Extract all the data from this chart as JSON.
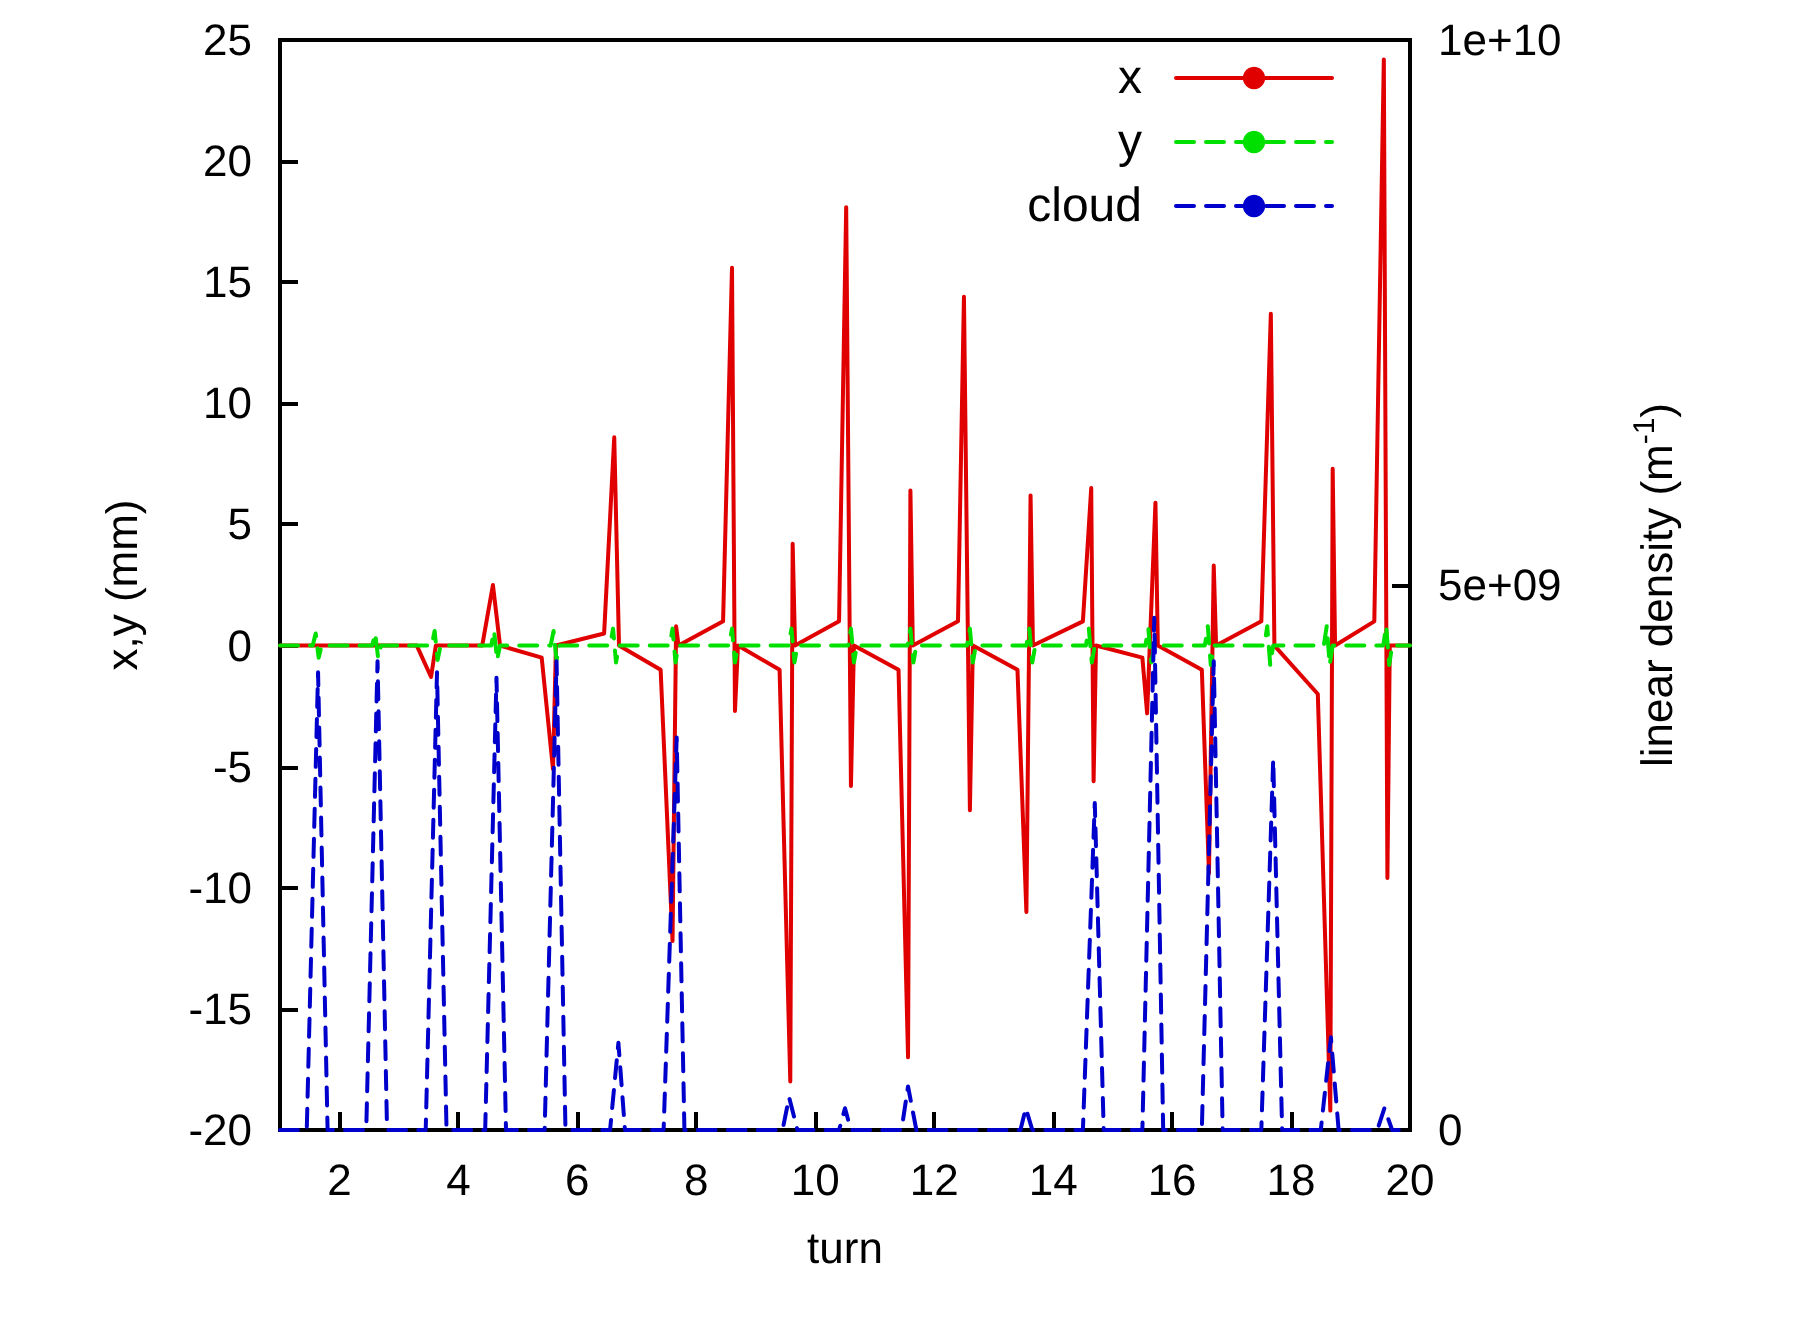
{
  "chart_data": {
    "type": "line",
    "xlabel": "turn",
    "ylabel": "x,y (mm)",
    "y2label": "linear density (m$^{-1}$)",
    "xlim": [
      1,
      20
    ],
    "xticks": [
      2,
      4,
      6,
      8,
      10,
      12,
      14,
      16,
      18,
      20
    ],
    "ylim": [
      -20,
      25
    ],
    "yticks": [
      -20,
      -15,
      -10,
      -5,
      0,
      5,
      10,
      15,
      20,
      25
    ],
    "y2lim": [
      0,
      10000000000
    ],
    "y2ticks": [
      {
        "value": 0,
        "label": "0"
      },
      {
        "value": 5000000000,
        "label": "5e+09"
      },
      {
        "value": 10000000000,
        "label": "1e+10"
      }
    ],
    "grid": false,
    "legend": "top right",
    "marker": "none",
    "series": [
      {
        "name": "x",
        "color": "#e00000",
        "line_style": "solid",
        "x": [
          1,
          3.3,
          3.54,
          3.62,
          4.4,
          4.58,
          4.7,
          5.4,
          5.59,
          5.64,
          6.45,
          6.62,
          6.7,
          7.4,
          7.6,
          7.66,
          7.7,
          8.45,
          8.6,
          8.65,
          8.7,
          9.4,
          9.58,
          9.62,
          9.66,
          10.4,
          10.52,
          10.6,
          10.65,
          11.4,
          11.56,
          11.6,
          11.64,
          12.4,
          12.5,
          12.6,
          12.65,
          13.4,
          13.55,
          13.62,
          13.66,
          14.5,
          14.64,
          14.68,
          14.72,
          15.5,
          15.58,
          15.72,
          15.76,
          16.5,
          16.62,
          16.7,
          16.74,
          17.5,
          17.66,
          17.72,
          18.45,
          18.66,
          18.7,
          18.74,
          19.4,
          19.56,
          19.62,
          19.66,
          20
        ],
        "values": [
          0,
          0,
          -1.3,
          0,
          0,
          2.5,
          0,
          -0.5,
          -5.1,
          0,
          0.5,
          8.6,
          0,
          -1,
          -12.2,
          0.8,
          0,
          1,
          15.6,
          -2.7,
          0,
          -1,
          -18,
          4.2,
          0,
          1,
          18.1,
          -5.8,
          0,
          -1,
          -17,
          6.4,
          0,
          1,
          14.4,
          -6.8,
          0,
          -1,
          -11,
          6.2,
          0,
          1,
          6.5,
          -5.6,
          0,
          -0.5,
          -2.8,
          5.9,
          0,
          -1,
          -9.4,
          3.3,
          0,
          1,
          13.7,
          0,
          -2,
          -19.2,
          7.3,
          0,
          1,
          24.2,
          -9.6,
          0,
          0
        ]
      },
      {
        "name": "y",
        "color": "#00e000",
        "line_style": "dashed",
        "x": [
          1,
          1.55,
          1.6,
          1.65,
          1.7,
          2.55,
          2.6,
          2.65,
          2.7,
          3.55,
          3.6,
          3.65,
          3.7,
          4.55,
          4.6,
          4.65,
          4.7,
          5.55,
          5.6,
          5.65,
          5.7,
          6.55,
          6.6,
          6.65,
          6.7,
          7.55,
          7.6,
          7.65,
          7.7,
          8.55,
          8.6,
          8.65,
          8.7,
          9.55,
          9.6,
          9.65,
          9.7,
          10.55,
          10.6,
          10.65,
          10.7,
          11.55,
          11.6,
          11.65,
          11.7,
          12.55,
          12.6,
          12.65,
          12.7,
          13.55,
          13.6,
          13.65,
          13.7,
          14.55,
          14.6,
          14.65,
          14.7,
          15.55,
          15.6,
          15.65,
          15.7,
          16.55,
          16.6,
          16.65,
          16.7,
          17.55,
          17.6,
          17.65,
          17.7,
          18.55,
          18.6,
          18.65,
          18.7,
          19.55,
          19.6,
          19.65,
          19.7,
          20
        ],
        "values": [
          0,
          0,
          0.5,
          -0.5,
          0,
          0,
          0.5,
          -0.5,
          0,
          0,
          0.6,
          -0.6,
          0,
          0,
          0.6,
          -0.6,
          0,
          0,
          0.6,
          -0.6,
          0,
          0,
          0.7,
          -0.7,
          0,
          0,
          0.7,
          -0.7,
          0,
          0,
          0.7,
          -0.7,
          0,
          0,
          0.7,
          -0.7,
          0,
          0,
          0.7,
          -0.7,
          0,
          0,
          0.7,
          -0.7,
          0,
          0,
          0.7,
          -0.7,
          0,
          0,
          0.7,
          -0.7,
          0,
          0,
          0.7,
          -0.7,
          0,
          0,
          0.7,
          -0.7,
          0,
          0,
          0.8,
          -0.8,
          0,
          0,
          0.8,
          -0.8,
          0,
          0,
          0.8,
          -0.8,
          0,
          0,
          0.8,
          -0.8,
          0,
          0
        ]
      },
      {
        "name": "cloud",
        "color": "#0000cc",
        "line_style": "dashed",
        "axis": "y2",
        "x": [
          1,
          1.45,
          1.64,
          1.8,
          2.45,
          2.64,
          2.8,
          3.45,
          3.64,
          3.8,
          4.45,
          4.64,
          4.8,
          5.45,
          5.65,
          5.8,
          6.55,
          6.69,
          6.8,
          7.45,
          7.67,
          7.8,
          9.45,
          9.56,
          9.7,
          10.4,
          10.5,
          10.6,
          11.45,
          11.56,
          11.7,
          13.45,
          13.54,
          13.65,
          14.5,
          14.7,
          14.85,
          15.5,
          15.7,
          15.85,
          16.5,
          16.7,
          16.85,
          17.5,
          17.7,
          17.85,
          18.5,
          18.67,
          18.8,
          19.45,
          19.57,
          19.7,
          20
        ],
        "values": [
          0,
          0,
          4200000000,
          0,
          0,
          4300000000,
          0,
          0,
          4200000000,
          0,
          0,
          4150000000,
          0,
          0,
          4300000000,
          0,
          0,
          800000000,
          0,
          0,
          3600000000,
          0,
          0,
          300000000,
          0,
          0,
          200000000,
          0,
          0,
          400000000,
          0,
          0,
          200000000,
          0,
          0,
          3000000000,
          0,
          0,
          4700000000,
          0,
          0,
          4300000000,
          0,
          0,
          3400000000,
          0,
          0,
          850000000,
          0,
          0,
          200000000,
          0,
          0
        ]
      }
    ]
  }
}
